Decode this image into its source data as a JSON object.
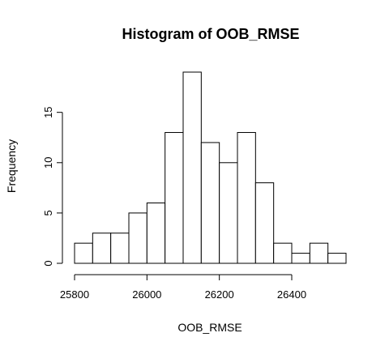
{
  "chart_data": {
    "type": "bar",
    "title": "Histogram of OOB_RMSE",
    "xlabel": "OOB_RMSE",
    "ylabel": "Frequency",
    "bin_width": 50,
    "bins": [
      {
        "start": 25800,
        "end": 25850,
        "count": 2
      },
      {
        "start": 25850,
        "end": 25900,
        "count": 3
      },
      {
        "start": 25900,
        "end": 25950,
        "count": 3
      },
      {
        "start": 25950,
        "end": 26000,
        "count": 5
      },
      {
        "start": 26000,
        "end": 26050,
        "count": 6
      },
      {
        "start": 26050,
        "end": 26100,
        "count": 13
      },
      {
        "start": 26100,
        "end": 26150,
        "count": 19
      },
      {
        "start": 26150,
        "end": 26200,
        "count": 12
      },
      {
        "start": 26200,
        "end": 26250,
        "count": 10
      },
      {
        "start": 26250,
        "end": 26300,
        "count": 13
      },
      {
        "start": 26300,
        "end": 26350,
        "count": 8
      },
      {
        "start": 26350,
        "end": 26400,
        "count": 2
      },
      {
        "start": 26400,
        "end": 26450,
        "count": 1
      },
      {
        "start": 26450,
        "end": 26500,
        "count": 2
      },
      {
        "start": 26500,
        "end": 26550,
        "count": 1
      }
    ],
    "x_ticks": [
      25800,
      26000,
      26200,
      26400
    ],
    "y_ticks": [
      0,
      5,
      10,
      15
    ],
    "xlim": [
      25800,
      26550
    ],
    "ylim": [
      0,
      19
    ],
    "grid": false,
    "colors": {
      "bar_fill": "#ffffff",
      "bar_stroke": "#000000",
      "axis": "#000000"
    }
  }
}
